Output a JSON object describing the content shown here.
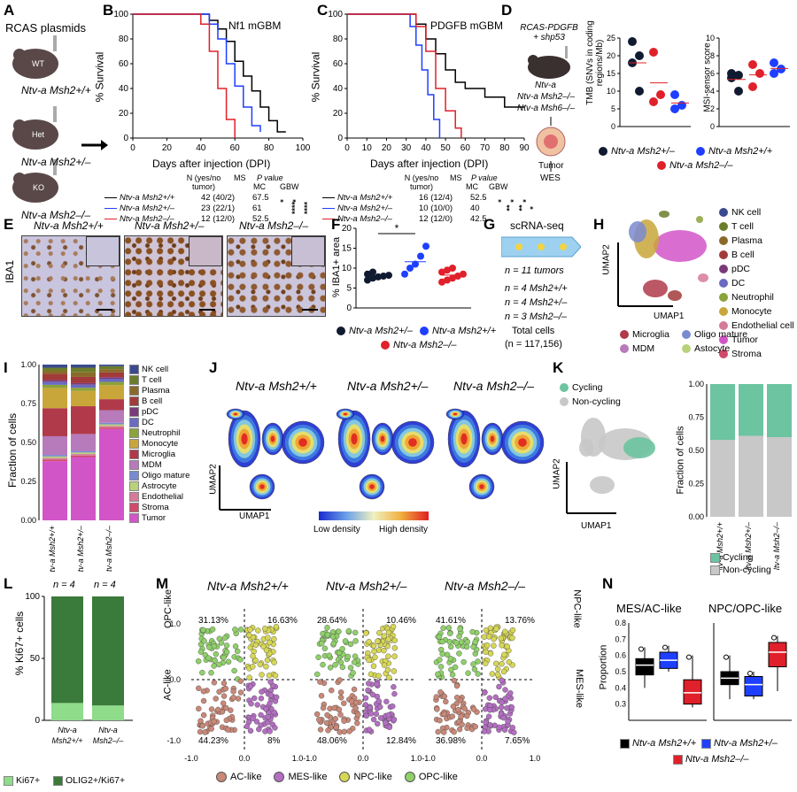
{
  "panels": {
    "A": {
      "letter": "A",
      "title": "RCAS plasmids",
      "mice": [
        {
          "tag": "WT",
          "label": "Ntv-a Msh2+/+"
        },
        {
          "tag": "Het",
          "label": "Ntv-a Msh2+/–"
        },
        {
          "tag": "KO",
          "label": "Ntv-a Msh2–/–"
        }
      ]
    },
    "B": {
      "letter": "B",
      "title": "Nf1 mGBM",
      "ylabel": "% Survival",
      "xlabel": "Days after injection (DPI)",
      "xticks": [
        "0",
        "20",
        "40",
        "60",
        "80",
        "100"
      ],
      "yticks": [
        "0",
        "20",
        "40",
        "60",
        "80",
        "100"
      ],
      "table_head": {
        "n": "N (yes/no tumor)",
        "ms": "MS",
        "p": "P value",
        "mc": "MC",
        "gbw": "GBW"
      },
      "rows": [
        {
          "label": "Ntv-a Msh2+/+",
          "n": "42 (40/2)",
          "ms": "67.5",
          "color": "#000000"
        },
        {
          "label": "Ntv-a Msh2+/–",
          "n": "23 (22/1)",
          "ms": "61",
          "color": "#1f3fff"
        },
        {
          "label": "Ntv-a Msh2–/–",
          "n": "12 (12/0)",
          "ms": "52.5",
          "color": "#e0202a"
        }
      ],
      "stars": [
        "*",
        "****",
        "*",
        "****"
      ]
    },
    "C": {
      "letter": "C",
      "title": "PDGFB mGBM",
      "ylabel": "% Survival",
      "xlabel": "Days after injection (DPI)",
      "xticks": [
        "0",
        "10",
        "20",
        "30",
        "40",
        "50",
        "60",
        "70",
        "80",
        "90"
      ],
      "yticks": [
        "0",
        "20",
        "40",
        "60",
        "80",
        "100"
      ],
      "table_head": {
        "n": "N (yes/no tumor)",
        "ms": "MS",
        "p": "P value",
        "mc": "MC",
        "gbw": "GBW"
      },
      "rows": [
        {
          "label": "Ntv-a Msh2+/+",
          "n": "16 (12/4)",
          "ms": "52.5",
          "color": "#000000"
        },
        {
          "label": "Ntv-a Msh2+/–",
          "n": "10 (10/0)",
          "ms": "40",
          "color": "#1f3fff"
        },
        {
          "label": "Ntv-a Msh2–/–",
          "n": "12 (12/0)",
          "ms": "42.5",
          "color": "#e0202a"
        }
      ],
      "stars": [
        "*",
        "**",
        "*",
        "**",
        "*",
        "*"
      ]
    },
    "D": {
      "letter": "D",
      "top": "RCAS-PDGFB + shp53",
      "mice": [
        "Ntv-a",
        "Ntv-a Msh2–/–",
        "Ntv-a Msh6–/–"
      ],
      "tumor": "Tumor",
      "wes": "WES",
      "tmb_ylabel": "TMB (SNVs in coding regions/Mb)",
      "tmb_yticks": [
        "0",
        "5",
        "10",
        "15",
        "20",
        "25"
      ],
      "msi_ylabel": "MSI-sensor score",
      "msi_yticks": [
        "0",
        "2",
        "4",
        "6",
        "8",
        "10"
      ],
      "legend": [
        "Ntv-a Msh2+/–",
        "Ntv-a Msh2+/+",
        "Ntv-a Msh2–/–"
      ]
    },
    "E": {
      "letter": "E",
      "side": "IBA1",
      "titles": [
        "Ntv-a Msh2+/+",
        "Ntv-a Msh2+/–",
        "Ntv-a Msh2–/–"
      ]
    },
    "F": {
      "letter": "F",
      "ylabel": "% IBA1+ area",
      "yticks": [
        "0",
        "5",
        "10",
        "15",
        "20"
      ],
      "star": "*",
      "legend": [
        "Ntv-a Msh2+/–",
        "Ntv-a Msh2+/+",
        "Ntv-a Msh2–/–"
      ]
    },
    "G": {
      "letter": "G",
      "title": "scRNA-seq",
      "lines": [
        "n = 11 tumors",
        "n = 4 Msh2+/+",
        "n = 4 Msh2+/–",
        "n = 3 Msh2–/–",
        "Total cells",
        "(n = 117,156)"
      ]
    },
    "H": {
      "letter": "H",
      "xlabel": "UMAP1",
      "ylabel": "UMAP2",
      "legend": [
        {
          "name": "NK cell",
          "color": "#3b4a8e"
        },
        {
          "name": "T cell",
          "color": "#6b7d2a"
        },
        {
          "name": "Plasma",
          "color": "#8a6a2a"
        },
        {
          "name": "B cell",
          "color": "#a23a3a"
        },
        {
          "name": "pDC",
          "color": "#7a3a7a"
        },
        {
          "name": "DC",
          "color": "#6a6ac0"
        },
        {
          "name": "Neutrophil",
          "color": "#8aa33a"
        },
        {
          "name": "Monocyte",
          "color": "#c9a63a"
        },
        {
          "name": "Endothelial cell",
          "color": "#d67a9a"
        },
        {
          "name": "Tumor",
          "color": "#d255c8"
        },
        {
          "name": "Stroma",
          "color": "#d04a6a"
        }
      ],
      "legend_bottom": [
        {
          "name": "Microglia",
          "color": "#b03a4a"
        },
        {
          "name": "Oligo mature",
          "color": "#7a8ad0"
        },
        {
          "name": "MDM",
          "color": "#b77abb"
        },
        {
          "name": "Astocyte",
          "color": "#b7d27a"
        }
      ]
    },
    "I": {
      "letter": "I",
      "ylabel": "Fraction of cells",
      "yticks": [
        "0.00",
        "0.25",
        "0.50",
        "0.75",
        "1.00"
      ],
      "groups": [
        "Ntv-a Msh2+/+",
        "Ntv-a Msh2+/–",
        "Ntv-a Msh2–/–"
      ],
      "legend": [
        {
          "name": "NK cell",
          "color": "#3b4a8e"
        },
        {
          "name": "T cell",
          "color": "#6b7d2a"
        },
        {
          "name": "Plasma",
          "color": "#8a6a2a"
        },
        {
          "name": "B cell",
          "color": "#a23a3a"
        },
        {
          "name": "pDC",
          "color": "#7a3a7a"
        },
        {
          "name": "DC",
          "color": "#6a6ac0"
        },
        {
          "name": "Neutrophil",
          "color": "#8aa33a"
        },
        {
          "name": "Monocyte",
          "color": "#c9a63a"
        },
        {
          "name": "Microglia",
          "color": "#b03a4a"
        },
        {
          "name": "MDM",
          "color": "#b77abb"
        },
        {
          "name": "Oligo mature",
          "color": "#7a8ad0"
        },
        {
          "name": "Astrocyte",
          "color": "#b7d27a"
        },
        {
          "name": "Endothelial",
          "color": "#d67a9a"
        },
        {
          "name": "Stroma",
          "color": "#d04a6a"
        },
        {
          "name": "Tumor",
          "color": "#d255c8"
        }
      ]
    },
    "J": {
      "letter": "J",
      "titles": [
        "Ntv-a Msh2+/+",
        "Ntv-a Msh2+/–",
        "Ntv-a Msh2–/–"
      ],
      "xlabel": "UMAP1",
      "ylabel": "UMAP2",
      "low": "Low density",
      "high": "High density"
    },
    "K": {
      "letter": "K",
      "legend": [
        "Cycling",
        "Non-cycling"
      ],
      "xlabel": "UMAP1",
      "ylabel": "UMAP2",
      "bar_ylabel": "Fraction of cells",
      "yticks": [
        "0.00",
        "0.25",
        "0.50",
        "0.75",
        "1.00"
      ],
      "groups": [
        "Ntv-a Msh2+/+",
        "Ntv-a Msh2+/–",
        "Ntv-a Msh2–/–"
      ]
    },
    "L": {
      "letter": "L",
      "ylabel": "% Ki67+ cells",
      "yticks": [
        "0",
        "50",
        "100"
      ],
      "n_labels": [
        "n = 4",
        "n = 4"
      ],
      "groups": [
        "Ntv-a Msh2+/+",
        "Ntv-a Msh2–/–"
      ],
      "legend": [
        "Ki67+",
        "OLIG2+/Ki67+"
      ]
    },
    "M": {
      "letter": "M",
      "titles": [
        "Ntv-a Msh2+/+",
        "Ntv-a Msh2+/–",
        "Ntv-a Msh2–/–"
      ],
      "quads": [
        [
          "31.13%",
          "16.63%",
          "44.23%",
          "8%"
        ],
        [
          "28.64%",
          "10.46%",
          "48.06%",
          "12.84%"
        ],
        [
          "41.61%",
          "13.76%",
          "36.98%",
          "7.65%"
        ]
      ],
      "left_top": "OPC-like",
      "left_bottom": "AC-like",
      "right_top": "NPC-like",
      "right_bottom": "MES-like",
      "x_left": "AC-like",
      "x_right": "MES-like",
      "ticks": [
        "1.0",
        "0.0",
        "-1.0"
      ],
      "xticks": [
        "-1.0",
        "0.0",
        "1.0"
      ],
      "legend": [
        {
          "name": "AC-like",
          "color": "#c98878"
        },
        {
          "name": "MES-like",
          "color": "#b36fc2"
        },
        {
          "name": "NPC-like",
          "color": "#d7d756"
        },
        {
          "name": "OPC-like",
          "color": "#8fd06a"
        }
      ]
    },
    "N": {
      "letter": "N",
      "titles": [
        "MES/AC-like",
        "NPC/OPC-like"
      ],
      "ylabel": "Proportion",
      "yticks": [
        "0.3",
        "0.4",
        "0.5",
        "0.6",
        "0.7",
        "0.8"
      ],
      "legend": [
        "Ntv-a Msh2+/+",
        "Ntv-a Msh2+/–",
        "Ntv-a Msh2–/–"
      ]
    }
  },
  "chart_data": [
    {
      "type": "line",
      "title": "Nf1 mGBM",
      "xlabel": "Days after injection (DPI)",
      "ylabel": "% Survival",
      "xlim": [
        0,
        100
      ],
      "ylim": [
        0,
        100
      ],
      "series": [
        {
          "name": "Ntv-a Msh2+/+",
          "x": [
            0,
            45,
            50,
            55,
            60,
            65,
            70,
            75,
            80,
            85,
            90
          ],
          "y": [
            100,
            95,
            88,
            78,
            62,
            50,
            38,
            25,
            14,
            5,
            5
          ]
        },
        {
          "name": "Ntv-a Msh2+/–",
          "x": [
            0,
            45,
            50,
            55,
            60,
            65,
            70,
            75
          ],
          "y": [
            100,
            92,
            80,
            60,
            42,
            25,
            10,
            5
          ]
        },
        {
          "name": "Ntv-a Msh2–/–",
          "x": [
            0,
            40,
            45,
            50,
            55,
            60
          ],
          "y": [
            100,
            92,
            70,
            40,
            15,
            0
          ]
        }
      ]
    },
    {
      "type": "line",
      "title": "PDGFB mGBM",
      "xlabel": "Days after injection (DPI)",
      "ylabel": "% Survival",
      "xlim": [
        0,
        90
      ],
      "ylim": [
        0,
        100
      ],
      "series": [
        {
          "name": "Ntv-a Msh2+/+",
          "x": [
            0,
            35,
            40,
            45,
            50,
            55,
            60,
            70,
            80,
            90
          ],
          "y": [
            100,
            92,
            80,
            68,
            55,
            45,
            40,
            33,
            25,
            25
          ]
        },
        {
          "name": "Ntv-a Msh2+/–",
          "x": [
            0,
            32,
            35,
            38,
            41,
            44,
            47
          ],
          "y": [
            100,
            90,
            75,
            55,
            35,
            15,
            0
          ]
        },
        {
          "name": "Ntv-a Msh2–/–",
          "x": [
            0,
            35,
            40,
            45,
            50,
            55,
            58
          ],
          "y": [
            100,
            90,
            70,
            40,
            22,
            8,
            0
          ]
        }
      ]
    },
    {
      "type": "scatter",
      "title": "",
      "ylabel": "TMB (SNVs in coding regions/Mb)",
      "ylim": [
        0,
        25
      ],
      "series": [
        {
          "name": "Ntv-a Msh2+/–",
          "values": [
            24,
            20,
            18,
            10
          ]
        },
        {
          "name": "Ntv-a Msh2–/–",
          "values": [
            21,
            9,
            7
          ]
        },
        {
          "name": "Ntv-a Msh2+/+",
          "values": [
            9,
            6,
            5
          ]
        }
      ]
    },
    {
      "type": "scatter",
      "title": "",
      "ylabel": "MSI-sensor score",
      "ylim": [
        0,
        10
      ],
      "series": [
        {
          "name": "Ntv-a Msh2+/–",
          "values": [
            6,
            5.8,
            5.5,
            4
          ]
        },
        {
          "name": "Ntv-a Msh2–/–",
          "values": [
            7,
            6,
            4.5
          ]
        },
        {
          "name": "Ntv-a Msh2+/+",
          "values": [
            7.2,
            6.5,
            6
          ]
        }
      ]
    },
    {
      "type": "scatter",
      "ylabel": "% IBA1+ area",
      "ylim": [
        0,
        20
      ],
      "series": [
        {
          "name": "Ntv-a Msh2+/–",
          "values": [
            7,
            7.5,
            7.8,
            8,
            8.2,
            8.5,
            9
          ]
        },
        {
          "name": "Ntv-a Msh2+/+",
          "values": [
            8.5,
            10,
            11,
            13,
            15.5
          ]
        },
        {
          "name": "Ntv-a Msh2–/–",
          "values": [
            6.5,
            7,
            7.5,
            8,
            8.5,
            9,
            9.5,
            10
          ]
        }
      ]
    },
    {
      "type": "bar",
      "ylabel": "Fraction of cells",
      "categories": [
        "Ntv-a Msh2+/+",
        "Ntv-a Msh2+/–",
        "Ntv-a Msh2–/–"
      ],
      "series": [
        {
          "name": "Tumor",
          "values": [
            0.38,
            0.41,
            0.58
          ]
        },
        {
          "name": "Stroma",
          "values": [
            0.01,
            0.01,
            0.01
          ]
        },
        {
          "name": "Endothelial",
          "values": [
            0.01,
            0.01,
            0.01
          ]
        },
        {
          "name": "Astrocyte",
          "values": [
            0.01,
            0.01,
            0.01
          ]
        },
        {
          "name": "Oligo mature",
          "values": [
            0.01,
            0.01,
            0.01
          ]
        },
        {
          "name": "MDM",
          "values": [
            0.12,
            0.11,
            0.08
          ]
        },
        {
          "name": "Microglia",
          "values": [
            0.18,
            0.18,
            0.07
          ]
        },
        {
          "name": "Monocyte",
          "values": [
            0.13,
            0.1,
            0.09
          ]
        },
        {
          "name": "Neutrophil",
          "values": [
            0.02,
            0.02,
            0.02
          ]
        },
        {
          "name": "DC",
          "values": [
            0.02,
            0.02,
            0.02
          ]
        },
        {
          "name": "pDC",
          "values": [
            0.01,
            0.01,
            0.01
          ]
        },
        {
          "name": "B cell",
          "values": [
            0.04,
            0.04,
            0.03
          ]
        },
        {
          "name": "Plasma",
          "values": [
            0.02,
            0.03,
            0.02
          ]
        },
        {
          "name": "T cell",
          "values": [
            0.02,
            0.03,
            0.02
          ]
        },
        {
          "name": "NK cell",
          "values": [
            0.02,
            0.02,
            0.01
          ]
        }
      ]
    },
    {
      "type": "bar",
      "ylabel": "Fraction of cells",
      "categories": [
        "Ntv-a Msh2+/+",
        "Ntv-a Msh2+/–",
        "Ntv-a Msh2–/–"
      ],
      "series": [
        {
          "name": "Non-cycling",
          "values": [
            0.58,
            0.61,
            0.6
          ]
        },
        {
          "name": "Cycling",
          "values": [
            0.42,
            0.39,
            0.4
          ]
        }
      ]
    },
    {
      "type": "bar",
      "ylabel": "% Ki67+ cells",
      "categories": [
        "Ntv-a Msh2+/+",
        "Ntv-a Msh2–/–"
      ],
      "series": [
        {
          "name": "Ki67+",
          "values": [
            14,
            12
          ]
        },
        {
          "name": "OLIG2+/Ki67+",
          "values": [
            86,
            88
          ]
        }
      ]
    },
    {
      "type": "box",
      "title": "MES/AC-like",
      "ylabel": "Proportion",
      "categories": [
        "Ntv-a Msh2+/+",
        "Ntv-a Msh2+/–",
        "Ntv-a Msh2–/–"
      ],
      "values": [
        {
          "q1": 0.48,
          "median": 0.54,
          "q3": 0.58,
          "min": 0.4,
          "max": 0.65
        },
        {
          "q1": 0.52,
          "median": 0.57,
          "q3": 0.62,
          "min": 0.5,
          "max": 0.66
        },
        {
          "q1": 0.3,
          "median": 0.37,
          "q3": 0.45,
          "min": 0.28,
          "max": 0.6
        }
      ]
    },
    {
      "type": "box",
      "title": "NPC/OPC-like",
      "ylabel": "Proportion",
      "categories": [
        "Ntv-a Msh2+/+",
        "Ntv-a Msh2+/–",
        "Ntv-a Msh2–/–"
      ],
      "values": [
        {
          "q1": 0.42,
          "median": 0.46,
          "q3": 0.5,
          "min": 0.33,
          "max": 0.6
        },
        {
          "q1": 0.35,
          "median": 0.42,
          "q3": 0.47,
          "min": 0.33,
          "max": 0.5
        },
        {
          "q1": 0.53,
          "median": 0.62,
          "q3": 0.68,
          "min": 0.38,
          "max": 0.72
        }
      ]
    }
  ]
}
